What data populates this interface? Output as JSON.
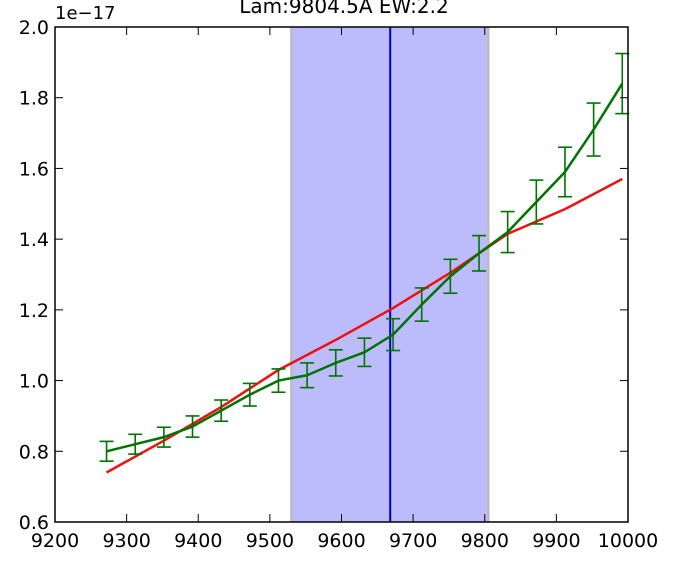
{
  "chart_data": {
    "type": "line",
    "title": "Lam:9804.5A EW:2.2",
    "xlabel": "",
    "ylabel": "",
    "y_scale_label": "1e−17",
    "xlim": [
      9200,
      10000
    ],
    "ylim": [
      0.6,
      2.0
    ],
    "x_ticks": [
      9200,
      9300,
      9400,
      9500,
      9600,
      9700,
      9800,
      9900,
      10000
    ],
    "x_tick_labels": [
      "9200",
      "9300",
      "9400",
      "9500",
      "9600",
      "9700",
      "9800",
      "9900",
      "10000"
    ],
    "y_ticks": [
      0.6,
      0.8,
      1.0,
      1.2,
      1.4,
      1.6,
      1.8,
      2.0
    ],
    "y_tick_labels": [
      "0.6",
      "0.8",
      "1.0",
      "1.2",
      "1.4",
      "1.6",
      "1.8",
      "2.0"
    ],
    "grid": false,
    "shaded_band": {
      "x_start": 9530,
      "x_end": 9805,
      "color": "#bcbcfc",
      "edge_color": "#bdbdbd"
    },
    "vertical_line": {
      "x": 9668,
      "color": "#0000cc"
    },
    "series": [
      {
        "style": "line-with-errorbars",
        "color": "#007300",
        "x": [
          9272,
          9312,
          9352,
          9392,
          9432,
          9472,
          9512,
          9552,
          9592,
          9632,
          9672,
          9712,
          9752,
          9792,
          9832,
          9872,
          9912,
          9952,
          9992
        ],
        "y": [
          0.8,
          0.82,
          0.84,
          0.87,
          0.915,
          0.96,
          1.0,
          1.015,
          1.05,
          1.08,
          1.13,
          1.215,
          1.295,
          1.36,
          1.42,
          1.505,
          1.59,
          1.71,
          1.84
        ],
        "yerr": [
          0.028,
          0.028,
          0.028,
          0.03,
          0.03,
          0.032,
          0.033,
          0.035,
          0.037,
          0.04,
          0.045,
          0.047,
          0.048,
          0.05,
          0.058,
          0.062,
          0.07,
          0.075,
          0.085
        ]
      },
      {
        "style": "line",
        "color": "#ee1111",
        "x": [
          9272,
          9352,
          9432,
          9512,
          9592,
          9672,
          9752,
          9832,
          9912,
          9992
        ],
        "y": [
          0.74,
          0.83,
          0.925,
          1.03,
          1.115,
          1.205,
          1.305,
          1.415,
          1.485,
          1.57
        ]
      }
    ]
  }
}
